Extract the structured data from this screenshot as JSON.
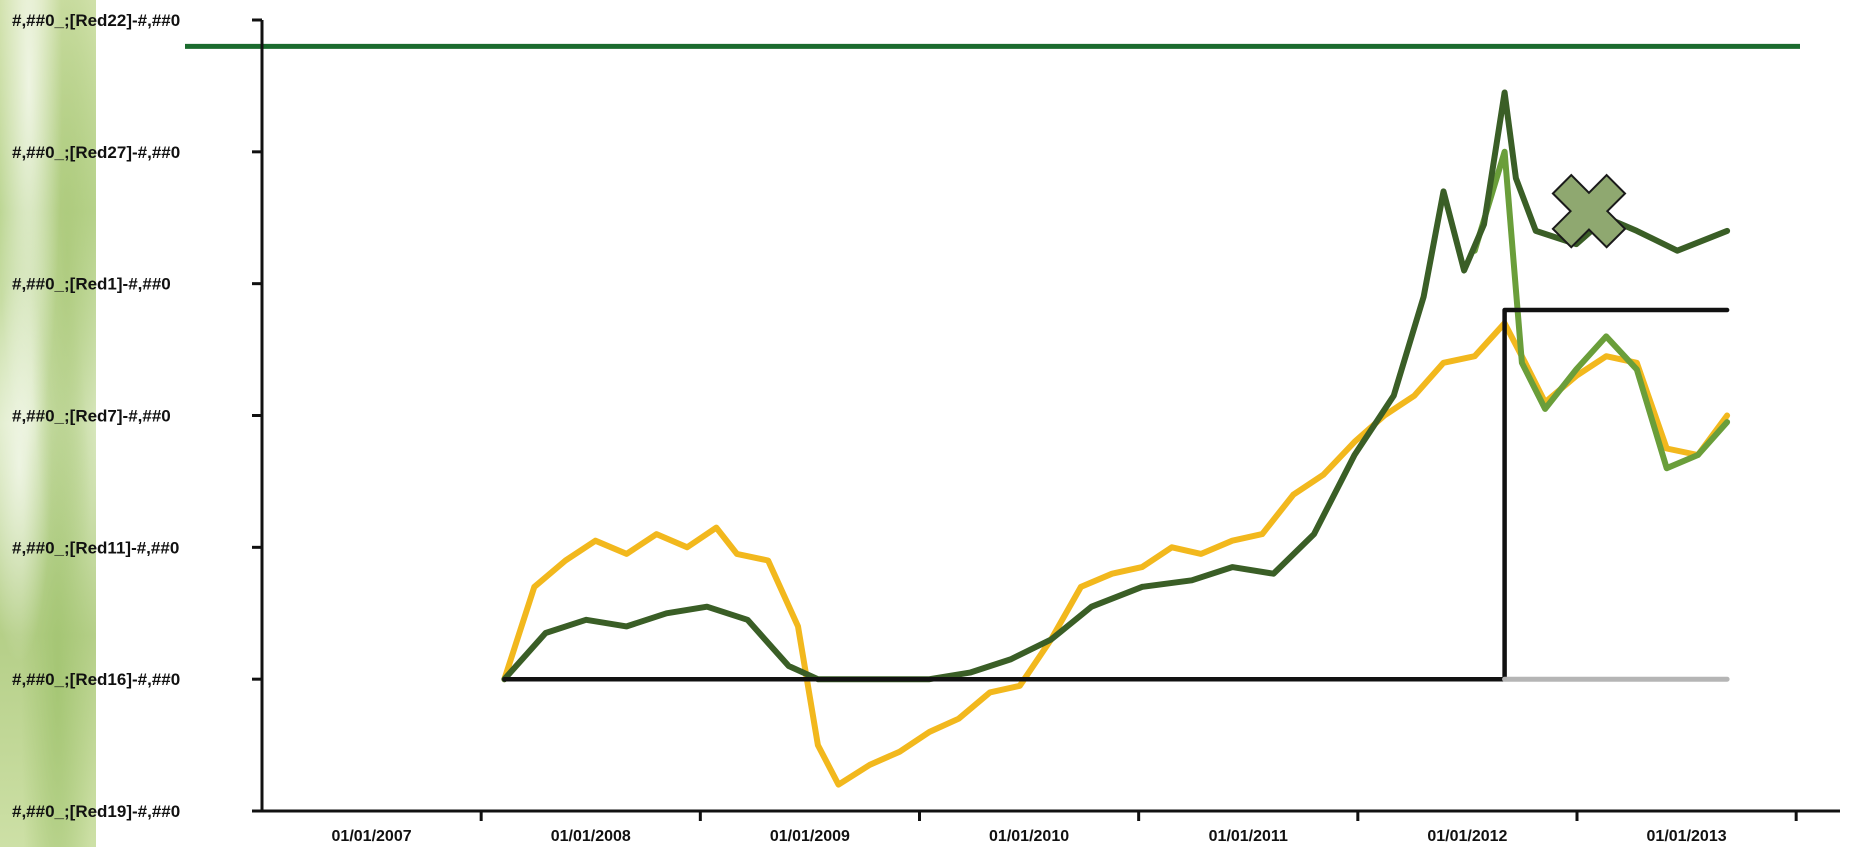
{
  "chart_data": {
    "type": "line",
    "y_tick_labels": [
      "#,##0_;[Red22]-#,##0",
      "#,##0_;[Red27]-#,##0",
      "#,##0_;[Red1]-#,##0",
      "#,##0_;[Red7]-#,##0",
      "#,##0_;[Red11]-#,##0",
      "#,##0_;[Red16]-#,##0",
      "#,##0_;[Red19]-#,##0"
    ],
    "x_tick_labels": [
      "01/01/2007",
      "01/01/2008",
      "01/01/2009",
      "01/01/2010",
      "01/01/2011",
      "01/01/2012",
      "01/01/2013"
    ],
    "x_axis_dates": [
      "2006-07-01",
      "2013-01-01"
    ],
    "y_range": [
      0,
      6
    ],
    "grid": false,
    "reference_line": {
      "y": 0.2,
      "color": "#1b6b2e"
    },
    "series": [
      {
        "color": "#f2b81d",
        "points": [
          [
            "2007-07-01",
            5.0
          ],
          [
            "2007-08-15",
            4.3
          ],
          [
            "2007-10-01",
            4.1
          ],
          [
            "2007-11-15",
            3.95
          ],
          [
            "2008-01-01",
            4.05
          ],
          [
            "2008-02-15",
            3.9
          ],
          [
            "2008-04-01",
            4.0
          ],
          [
            "2008-05-15",
            3.85
          ],
          [
            "2008-06-15",
            4.05
          ],
          [
            "2008-08-01",
            4.1
          ],
          [
            "2008-09-15",
            4.6
          ],
          [
            "2008-10-15",
            5.5
          ],
          [
            "2008-11-15",
            5.8
          ],
          [
            "2009-01-01",
            5.65
          ],
          [
            "2009-02-15",
            5.55
          ],
          [
            "2009-04-01",
            5.4
          ],
          [
            "2009-05-15",
            5.3
          ],
          [
            "2009-07-01",
            5.1
          ],
          [
            "2009-08-15",
            5.05
          ],
          [
            "2009-10-01",
            4.7
          ],
          [
            "2009-11-15",
            4.3
          ],
          [
            "2010-01-01",
            4.2
          ],
          [
            "2010-02-15",
            4.15
          ],
          [
            "2010-04-01",
            4.0
          ],
          [
            "2010-05-15",
            4.05
          ],
          [
            "2010-07-01",
            3.95
          ],
          [
            "2010-08-15",
            3.9
          ],
          [
            "2010-10-01",
            3.6
          ],
          [
            "2010-11-15",
            3.45
          ],
          [
            "2011-01-01",
            3.2
          ],
          [
            "2011-02-15",
            3.0
          ],
          [
            "2011-04-01",
            2.85
          ],
          [
            "2011-05-15",
            2.6
          ],
          [
            "2011-07-01",
            2.55
          ],
          [
            "2011-08-15",
            2.3
          ],
          [
            "2011-09-15",
            2.6
          ],
          [
            "2011-10-15",
            2.9
          ],
          [
            "2011-12-01",
            2.7
          ],
          [
            "2012-01-15",
            2.55
          ],
          [
            "2012-03-01",
            2.6
          ],
          [
            "2012-04-15",
            3.25
          ],
          [
            "2012-06-01",
            3.3
          ],
          [
            "2012-07-15",
            3.0
          ]
        ]
      },
      {
        "color": "#6a9e3a",
        "points": [
          [
            "2011-07-01",
            1.75
          ],
          [
            "2011-08-15",
            1.0
          ],
          [
            "2011-09-10",
            2.6
          ],
          [
            "2011-10-15",
            2.95
          ],
          [
            "2011-12-01",
            2.65
          ],
          [
            "2012-01-15",
            2.4
          ],
          [
            "2012-03-01",
            2.65
          ],
          [
            "2012-04-15",
            3.4
          ],
          [
            "2012-06-01",
            3.3
          ],
          [
            "2012-07-15",
            3.05
          ]
        ]
      },
      {
        "color": "#3a5e26",
        "points": [
          [
            "2007-07-01",
            5.0
          ],
          [
            "2007-09-01",
            4.65
          ],
          [
            "2007-11-01",
            4.55
          ],
          [
            "2008-01-01",
            4.6
          ],
          [
            "2008-03-01",
            4.5
          ],
          [
            "2008-05-01",
            4.45
          ],
          [
            "2008-07-01",
            4.55
          ],
          [
            "2008-09-01",
            4.9
          ],
          [
            "2008-10-15",
            5.0
          ],
          [
            "2009-01-01",
            5.0
          ],
          [
            "2009-04-01",
            5.0
          ],
          [
            "2009-06-01",
            4.95
          ],
          [
            "2009-08-01",
            4.85
          ],
          [
            "2009-10-01",
            4.7
          ],
          [
            "2009-12-01",
            4.45
          ],
          [
            "2010-02-15",
            4.3
          ],
          [
            "2010-05-01",
            4.25
          ],
          [
            "2010-07-01",
            4.15
          ],
          [
            "2010-09-01",
            4.2
          ],
          [
            "2010-11-01",
            3.9
          ],
          [
            "2011-01-01",
            3.3
          ],
          [
            "2011-03-01",
            2.85
          ],
          [
            "2011-04-15",
            2.1
          ],
          [
            "2011-05-15",
            1.3
          ],
          [
            "2011-06-15",
            1.9
          ],
          [
            "2011-07-15",
            1.55
          ],
          [
            "2011-08-15",
            0.55
          ],
          [
            "2011-09-01",
            1.2
          ],
          [
            "2011-10-01",
            1.6
          ],
          [
            "2011-12-01",
            1.7
          ],
          [
            "2012-01-15",
            1.5
          ],
          [
            "2012-03-01",
            1.6
          ],
          [
            "2012-05-01",
            1.75
          ],
          [
            "2012-07-15",
            1.6
          ]
        ]
      },
      {
        "color": "#111111",
        "points": [
          [
            "2007-07-01",
            5.0
          ],
          [
            "2011-08-15",
            5.0
          ],
          [
            "2011-08-15",
            2.2
          ],
          [
            "2012-07-15",
            2.2
          ]
        ]
      },
      {
        "color": "#b5b5b5",
        "points": [
          [
            "2011-08-15",
            5.0
          ],
          [
            "2012-07-15",
            5.0
          ]
        ]
      }
    ],
    "annotation_marker": {
      "shape": "x",
      "x": "2011-12-20",
      "y": 1.45,
      "color": "#8fa870"
    }
  }
}
